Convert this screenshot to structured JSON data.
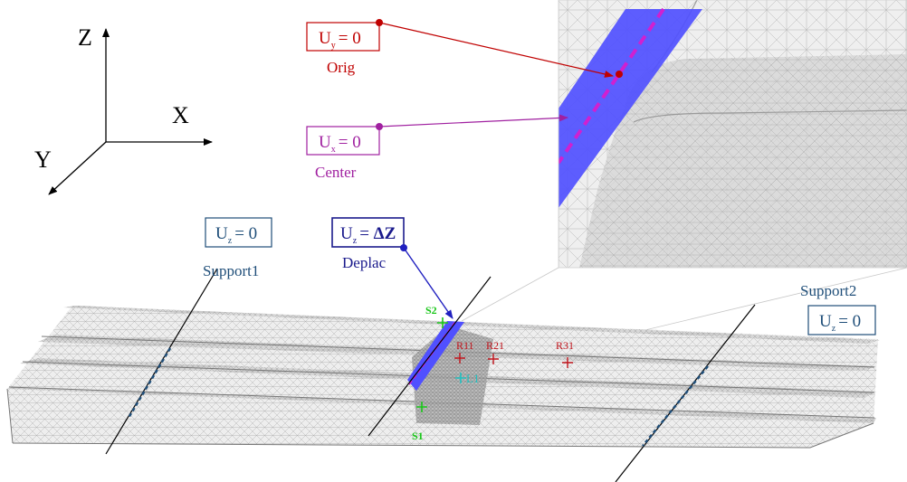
{
  "axes": {
    "z": "Z",
    "x": "X",
    "y": "Y"
  },
  "conditions": {
    "orig": {
      "letter": "U",
      "sub": "y",
      "value": "= 0",
      "name": "Orig"
    },
    "center": {
      "letter": "U",
      "sub": "x",
      "value": "= 0",
      "name": "Center"
    },
    "deplac": {
      "letter": "U",
      "sub": "z",
      "value": "= ",
      "value_bold": "ΔZ",
      "name": "Deplac"
    },
    "support1": {
      "letter": "U",
      "sub": "z",
      "value": "= 0",
      "name": "Support1"
    },
    "support2": {
      "letter": "U",
      "sub": "z",
      "value": "= 0",
      "name": "Support2"
    }
  },
  "points": {
    "s1": "S1",
    "s2": "S2",
    "r11": "R11",
    "r21": "R21",
    "r31": "R31",
    "l1": "L1"
  },
  "colors": {
    "orig": "#c00000",
    "center": "#a020a0",
    "deplac_line": "#2020c0",
    "deplac_box": "#1a1a8c",
    "support": "#1f4e79",
    "strain_s": "#19c619",
    "strain_r": "#c0141c",
    "strain_l": "#20c0c0",
    "constrained_face": "#5050ff",
    "center_line": "#d020d0",
    "mesh_bg": "#ececec",
    "mesh_line": "#a8a8a8"
  }
}
